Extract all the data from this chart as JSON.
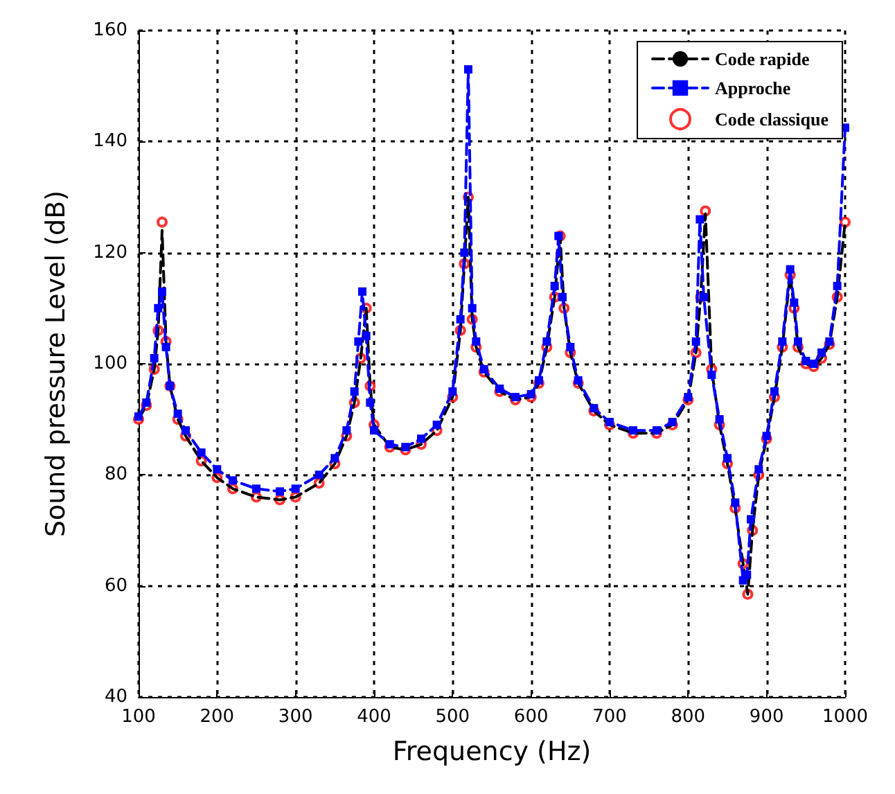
{
  "chart_data": {
    "type": "line",
    "xlabel": "Frequency (Hz)",
    "ylabel": "Sound pressure Level (dB)",
    "xlim": [
      100,
      1000
    ],
    "xticks": [
      100,
      200,
      300,
      400,
      500,
      600,
      700,
      800,
      900,
      1000
    ],
    "ylim": [
      40,
      160
    ],
    "yticks": [
      40,
      60,
      80,
      100,
      120,
      140,
      160
    ],
    "grid": true,
    "legend": "top right",
    "series": [
      {
        "name": "Code rapide",
        "color": "#000000",
        "line_style": "dashed",
        "marker": "none",
        "x": [
          100,
          110,
          120,
          125,
          130,
          135,
          140,
          150,
          160,
          180,
          200,
          220,
          250,
          280,
          300,
          330,
          350,
          365,
          375,
          383,
          390,
          395,
          400,
          420,
          440,
          460,
          480,
          500,
          510,
          515,
          520,
          525,
          530,
          540,
          560,
          580,
          600,
          610,
          620,
          630,
          637,
          642,
          650,
          660,
          680,
          700,
          730,
          760,
          780,
          800,
          810,
          816,
          822,
          830,
          840,
          850,
          860,
          870,
          876,
          882,
          890,
          900,
          910,
          920,
          930,
          935,
          940,
          950,
          960,
          970,
          980,
          990,
          1000
        ],
        "values": [
          90,
          92.5,
          99,
          106,
          124,
          104,
          96,
          90,
          87,
          82.5,
          79.5,
          77.5,
          76,
          75.5,
          76,
          78.5,
          82,
          87,
          93,
          101,
          110,
          96,
          89,
          85,
          84.5,
          85.5,
          88,
          94,
          106,
          118,
          130,
          108,
          103,
          98.5,
          95,
          93.5,
          94,
          96.5,
          103,
          112,
          123,
          110,
          102,
          96.5,
          91.5,
          89,
          87.5,
          87.5,
          89,
          93.5,
          102,
          112,
          127,
          99,
          89,
          82,
          74,
          64,
          58.5,
          70,
          80,
          86.5,
          94,
          103,
          116,
          110,
          103,
          100,
          99.5,
          101,
          103.5,
          112,
          125.5
        ]
      },
      {
        "name": "Approche",
        "color": "#0000ff",
        "line_style": "dashed",
        "marker": "square",
        "x": [
          100,
          110,
          120,
          125,
          130,
          135,
          140,
          150,
          160,
          180,
          200,
          220,
          250,
          280,
          300,
          330,
          350,
          365,
          375,
          380,
          385,
          390,
          395,
          400,
          420,
          440,
          460,
          480,
          500,
          510,
          515,
          520,
          525,
          530,
          540,
          560,
          580,
          600,
          610,
          620,
          630,
          635,
          640,
          650,
          660,
          680,
          700,
          730,
          760,
          780,
          800,
          810,
          815,
          820,
          830,
          840,
          850,
          860,
          870,
          875,
          880,
          890,
          900,
          910,
          920,
          930,
          935,
          940,
          950,
          960,
          970,
          980,
          990,
          1000
        ],
        "values": [
          90.5,
          93,
          101,
          110,
          113,
          103,
          96,
          91,
          88,
          84,
          81,
          79,
          77.5,
          77,
          77.5,
          80,
          83,
          88,
          95,
          104,
          113,
          105,
          93,
          88,
          85.5,
          85,
          86.5,
          89,
          95,
          108,
          120,
          153,
          110,
          104,
          99,
          95.5,
          94,
          94.5,
          97,
          104,
          114,
          123,
          112,
          103,
          97,
          92,
          89.5,
          88,
          88,
          89.5,
          94,
          104,
          126,
          112,
          98,
          90,
          83,
          75,
          61,
          62,
          72,
          81,
          87,
          95,
          104,
          117,
          111,
          104,
          100.5,
          100,
          102,
          104,
          114,
          142.5
        ]
      },
      {
        "name": "Code classique",
        "type": "scatter",
        "color": "#ff0000",
        "marker": "circle",
        "x": [
          100,
          110,
          120,
          125,
          130,
          135,
          140,
          150,
          160,
          180,
          200,
          220,
          250,
          280,
          300,
          330,
          350,
          365,
          375,
          383,
          390,
          395,
          400,
          420,
          440,
          460,
          480,
          500,
          510,
          515,
          520,
          525,
          530,
          540,
          560,
          580,
          600,
          610,
          620,
          630,
          637,
          642,
          650,
          660,
          680,
          700,
          730,
          760,
          780,
          800,
          810,
          816,
          822,
          830,
          840,
          850,
          860,
          870,
          876,
          882,
          890,
          900,
          910,
          920,
          930,
          935,
          940,
          950,
          960,
          970,
          980,
          990,
          1000
        ],
        "values": [
          90,
          92.5,
          99,
          106,
          125.5,
          104,
          96,
          90,
          87,
          82.5,
          79.5,
          77.5,
          76,
          75.5,
          76,
          78.5,
          82,
          87,
          93,
          101,
          110,
          96,
          89,
          85,
          84.5,
          85.5,
          88,
          94,
          106,
          118,
          130,
          108,
          103,
          98.5,
          95,
          93.5,
          94,
          96.5,
          103,
          112,
          123,
          110,
          102,
          96.5,
          91.5,
          89,
          87.5,
          87.5,
          89,
          93.5,
          102,
          112,
          127.5,
          99,
          89,
          82,
          74,
          64,
          58.5,
          70,
          80,
          86.5,
          94,
          103,
          116,
          110,
          103,
          100,
          99.5,
          101,
          103.5,
          112,
          125.5
        ]
      }
    ]
  }
}
